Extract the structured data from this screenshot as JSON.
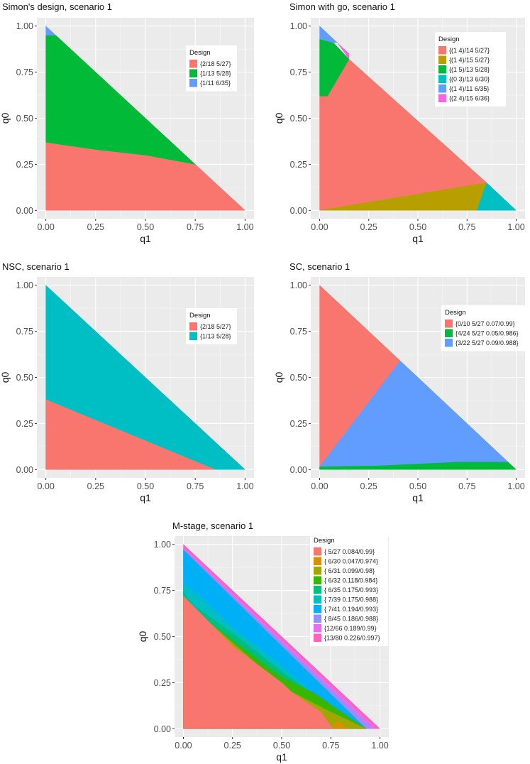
{
  "figure": {
    "legend_title": "Design"
  },
  "chart_data": [
    {
      "type": "region",
      "title": "Simon's design, scenario 1",
      "xlabel": "q1",
      "ylabel": "q0",
      "xlim": [
        0,
        1
      ],
      "ylim": [
        0,
        1
      ],
      "xticks": [
        "0.00",
        "0.25",
        "0.50",
        "0.75",
        "1.00"
      ],
      "yticks": [
        "0.00",
        "0.25",
        "0.50",
        "0.75",
        "1.00"
      ],
      "legend_position": "top-right",
      "legend": [
        {
          "label": "{2/18 5/27}",
          "color": "#F8766D"
        },
        {
          "label": "{1/13 5/28}",
          "color": "#00BA38"
        },
        {
          "label": "{1/11 6/35}",
          "color": "#619CFF"
        }
      ],
      "regions": [
        {
          "legend": 0,
          "points": [
            [
              0,
              0
            ],
            [
              1,
              0
            ],
            [
              0.75,
              0.25
            ],
            [
              0.5,
              0.3
            ],
            [
              0.25,
              0.33
            ],
            [
              0,
              0.37
            ]
          ]
        },
        {
          "legend": 1,
          "points": [
            [
              0,
              0.37
            ],
            [
              0.25,
              0.33
            ],
            [
              0.5,
              0.3
            ],
            [
              0.75,
              0.25
            ],
            [
              0.05,
              0.95
            ],
            [
              0,
              0.95
            ]
          ]
        },
        {
          "legend": 2,
          "points": [
            [
              0,
              0.95
            ],
            [
              0.05,
              0.95
            ],
            [
              0,
              1
            ]
          ]
        }
      ]
    },
    {
      "type": "region",
      "title": "Simon with go, scenario 1",
      "xlabel": "q1",
      "ylabel": "q0",
      "xlim": [
        0,
        1
      ],
      "ylim": [
        0,
        1
      ],
      "xticks": [
        "0.00",
        "0.25",
        "0.50",
        "0.75",
        "1.00"
      ],
      "yticks": [
        "0.00",
        "0.25",
        "0.50",
        "0.75",
        "1.00"
      ],
      "legend_position": "top-right",
      "legend": [
        {
          "label": "{(1 4)/14 5/27}",
          "color": "#F8766D"
        },
        {
          "label": "{(1 4)/15 5/27}",
          "color": "#B79F00"
        },
        {
          "label": "{(1 5)/13 5/28}",
          "color": "#00BA38"
        },
        {
          "label": "{(0 3)/13 6/30}",
          "color": "#00BFC4"
        },
        {
          "label": "{(1 4)/11 6/35}",
          "color": "#619CFF"
        },
        {
          "label": "{(2 4)/15 6/36}",
          "color": "#F564E3"
        }
      ],
      "regions": [
        {
          "legend": 0,
          "points": [
            [
              0,
              0.62
            ],
            [
              0.04,
              0.62
            ],
            [
              0.15,
              0.82
            ],
            [
              0.85,
              0.15
            ],
            [
              0,
              0
            ]
          ]
        },
        {
          "legend": 1,
          "points": [
            [
              0,
              0
            ],
            [
              0.8,
              0
            ],
            [
              0.85,
              0.15
            ]
          ]
        },
        {
          "legend": 3,
          "points": [
            [
              0.8,
              0
            ],
            [
              1,
              0
            ],
            [
              0.85,
              0.15
            ]
          ]
        },
        {
          "legend": 2,
          "points": [
            [
              0,
              0.62
            ],
            [
              0,
              0.93
            ],
            [
              0.07,
              0.91
            ],
            [
              0.15,
              0.82
            ],
            [
              0.04,
              0.62
            ]
          ]
        },
        {
          "legend": 4,
          "points": [
            [
              0,
              0.93
            ],
            [
              0,
              1
            ],
            [
              0.09,
              0.91
            ],
            [
              0.07,
              0.91
            ]
          ]
        },
        {
          "legend": 5,
          "points": [
            [
              0.09,
              0.91
            ],
            [
              0.12,
              0.88
            ],
            [
              0.15,
              0.85
            ],
            [
              0.15,
              0.82
            ]
          ]
        }
      ]
    },
    {
      "type": "region",
      "title": "NSC, scenario 1",
      "xlabel": "q1",
      "ylabel": "q0",
      "xlim": [
        0,
        1
      ],
      "ylim": [
        0,
        1
      ],
      "xticks": [
        "0.00",
        "0.25",
        "0.50",
        "0.75",
        "1.00"
      ],
      "yticks": [
        "0.00",
        "0.25",
        "0.50",
        "0.75",
        "1.00"
      ],
      "legend_position": "top-right",
      "legend": [
        {
          "label": "{2/18 5/27}",
          "color": "#F8766D"
        },
        {
          "label": "{1/13 5/28}",
          "color": "#00BFC4"
        }
      ],
      "regions": [
        {
          "legend": 1,
          "points": [
            [
              0,
              0
            ],
            [
              1,
              0
            ],
            [
              0,
              1
            ]
          ]
        },
        {
          "legend": 0,
          "points": [
            [
              0,
              0
            ],
            [
              0.85,
              0
            ],
            [
              0,
              0.38
            ]
          ]
        }
      ]
    },
    {
      "type": "region",
      "title": "SC, scenario 1",
      "xlabel": "q1",
      "ylabel": "q0",
      "xlim": [
        0,
        1
      ],
      "ylim": [
        0,
        1
      ],
      "xticks": [
        "0.00",
        "0.25",
        "0.50",
        "0.75",
        "1.00"
      ],
      "yticks": [
        "0.00",
        "0.25",
        "0.50",
        "0.75",
        "1.00"
      ],
      "legend_position": "top-right",
      "legend": [
        {
          "label": "{0/10 5/27 0.07/0.99}",
          "color": "#F8766D"
        },
        {
          "label": "{4/24 5/27 0.05/0.986}",
          "color": "#00BA38"
        },
        {
          "label": "{3/22 5/27 0.09/0.988}",
          "color": "#619CFF"
        }
      ],
      "regions": [
        {
          "legend": 0,
          "points": [
            [
              0,
              0
            ],
            [
              0,
              1
            ],
            [
              0.41,
              0.59
            ],
            [
              0,
              0.015
            ]
          ]
        },
        {
          "legend": 2,
          "points": [
            [
              0,
              0.015
            ],
            [
              0.41,
              0.59
            ],
            [
              0.96,
              0.04
            ],
            [
              0.7,
              0.04
            ],
            [
              0.3,
              0.02
            ]
          ]
        },
        {
          "legend": 1,
          "points": [
            [
              0,
              0
            ],
            [
              1,
              0
            ],
            [
              0.96,
              0.04
            ],
            [
              0.7,
              0.04
            ],
            [
              0.3,
              0.02
            ],
            [
              0,
              0.015
            ]
          ]
        }
      ]
    },
    {
      "type": "region",
      "title": "M-stage, scenario 1",
      "xlabel": "q1",
      "ylabel": "q0",
      "xlim": [
        0,
        1
      ],
      "ylim": [
        0,
        1
      ],
      "xticks": [
        "0.00",
        "0.25",
        "0.50",
        "0.75",
        "1.00"
      ],
      "yticks": [
        "0.00",
        "0.25",
        "0.50",
        "0.75",
        "1.00"
      ],
      "legend_position": "top-right",
      "legend": [
        {
          "label": "{ 5/27 0.084/0.99}",
          "color": "#F8766D"
        },
        {
          "label": "{ 6/30 0.047/0.974}",
          "color": "#D89000"
        },
        {
          "label": "{ 6/31 0.099/0.98}",
          "color": "#A3A500"
        },
        {
          "label": "{ 6/32 0.118/0.984}",
          "color": "#39B600"
        },
        {
          "label": "{ 6/35 0.175/0.993}",
          "color": "#00BF7D"
        },
        {
          "label": "{ 7/39 0.175/0.988}",
          "color": "#00BFC4"
        },
        {
          "label": "{ 7/41 0.194/0.993}",
          "color": "#00B0F6"
        },
        {
          "label": "{ 8/45 0.186/0.988}",
          "color": "#9590FF"
        },
        {
          "label": "{12/66 0.189/0.99}",
          "color": "#E76BF3"
        },
        {
          "label": "{13/80 0.226/0.997}",
          "color": "#FF62BC"
        }
      ],
      "regions": [
        {
          "legend": 9,
          "points": [
            [
              0,
              0
            ],
            [
              1,
              0
            ],
            [
              0,
              1
            ]
          ]
        },
        {
          "legend": 8,
          "points": [
            [
              0,
              0
            ],
            [
              0.98,
              0
            ],
            [
              0,
              0.985
            ]
          ]
        },
        {
          "legend": 7,
          "points": [
            [
              0,
              0
            ],
            [
              0.96,
              0
            ],
            [
              0,
              0.975
            ]
          ]
        },
        {
          "legend": 6,
          "points": [
            [
              0,
              0
            ],
            [
              0.93,
              0
            ],
            [
              0,
              0.97
            ]
          ]
        },
        {
          "legend": 5,
          "points": [
            [
              0,
              0
            ],
            [
              0.93,
              0
            ],
            [
              0.77,
              0.09
            ],
            [
              0.5,
              0.34
            ],
            [
              0.25,
              0.55
            ],
            [
              0.1,
              0.7
            ],
            [
              0,
              0.79
            ]
          ]
        },
        {
          "legend": 4,
          "points": [
            [
              0,
              0
            ],
            [
              0.93,
              0
            ],
            [
              0.72,
              0.14
            ],
            [
              0.5,
              0.31
            ],
            [
              0.25,
              0.52
            ],
            [
              0.05,
              0.67
            ],
            [
              0,
              0.74
            ]
          ]
        },
        {
          "legend": 3,
          "points": [
            [
              0,
              0
            ],
            [
              0.93,
              0
            ],
            [
              0.67,
              0.19
            ],
            [
              0.5,
              0.28
            ],
            [
              0.25,
              0.48
            ],
            [
              0.1,
              0.6
            ],
            [
              0,
              0.72
            ]
          ]
        },
        {
          "legend": 2,
          "points": [
            [
              0,
              0
            ],
            [
              0.93,
              0
            ],
            [
              0.75,
              0.09
            ],
            [
              0.55,
              0.2
            ],
            [
              0.45,
              0.28
            ],
            [
              0,
              0.7
            ]
          ]
        },
        {
          "legend": 1,
          "points": [
            [
              0,
              0
            ],
            [
              0.84,
              0
            ],
            [
              0.78,
              0.04
            ],
            [
              0.75,
              0
            ],
            [
              0,
              0
            ]
          ]
        },
        {
          "legend": 0,
          "points": [
            [
              0,
              0
            ],
            [
              0.76,
              0
            ],
            [
              0.7,
              0.09
            ],
            [
              0.55,
              0.2
            ],
            [
              0.5,
              0.25
            ],
            [
              0.25,
              0.45
            ],
            [
              0,
              0.72
            ]
          ]
        }
      ]
    }
  ]
}
